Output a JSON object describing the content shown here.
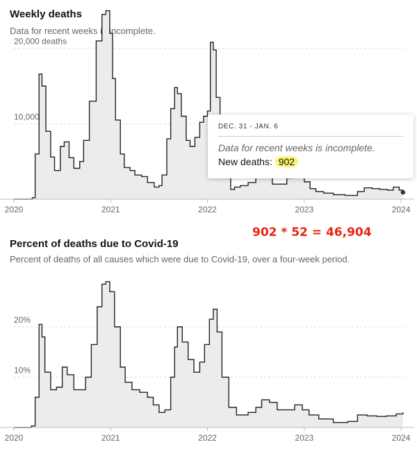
{
  "chart_data": [
    {
      "type": "area",
      "title": "Weekly deaths",
      "subtitle": "Data for recent weeks is incomplete.",
      "x_tick_labels": [
        "2020",
        "2021",
        "2022",
        "2023",
        "2024"
      ],
      "y_tick_labels": [
        "20,000 deaths",
        "10,000"
      ],
      "y_ticks": [
        20000,
        10000
      ],
      "xlim": [
        2020.0,
        2024.05
      ],
      "ylim": [
        0,
        22000
      ],
      "grid": "horizontal dashed",
      "x": [
        2020.0,
        2020.1,
        2020.19,
        2020.22,
        2020.26,
        2020.29,
        2020.33,
        2020.38,
        2020.42,
        2020.48,
        2020.52,
        2020.57,
        2020.62,
        2020.68,
        2020.72,
        2020.78,
        2020.85,
        2020.91,
        2020.95,
        2020.99,
        2021.02,
        2021.05,
        2021.1,
        2021.14,
        2021.2,
        2021.25,
        2021.32,
        2021.38,
        2021.45,
        2021.5,
        2021.53,
        2021.58,
        2021.62,
        2021.66,
        2021.69,
        2021.73,
        2021.78,
        2021.82,
        2021.87,
        2021.92,
        2021.96,
        2022.0,
        2022.03,
        2022.06,
        2022.09,
        2022.13,
        2022.18,
        2022.24,
        2022.28,
        2022.34,
        2022.42,
        2022.5,
        2022.55,
        2022.6,
        2022.67,
        2022.75,
        2022.82,
        2022.88,
        2022.94,
        2023.0,
        2023.06,
        2023.12,
        2023.2,
        2023.3,
        2023.42,
        2023.55,
        2023.62,
        2023.7,
        2023.78,
        2023.86,
        2023.92,
        2023.98,
        2024.02
      ],
      "values": [
        0,
        0,
        200,
        6000,
        16600,
        15000,
        9000,
        5600,
        3800,
        7000,
        7600,
        5500,
        4100,
        5000,
        7800,
        13000,
        21000,
        24500,
        25000,
        22000,
        16000,
        10500,
        6000,
        4200,
        3800,
        3200,
        3000,
        2200,
        1600,
        1800,
        3200,
        8000,
        12000,
        14800,
        14000,
        11000,
        7800,
        7000,
        8200,
        10200,
        11000,
        11700,
        20800,
        19800,
        13500,
        7000,
        3000,
        1300,
        1600,
        1800,
        2200,
        3200,
        3400,
        3000,
        2000,
        2000,
        2800,
        3800,
        3000,
        2300,
        1400,
        1000,
        800,
        600,
        500,
        1000,
        1500,
        1400,
        1300,
        1200,
        1600,
        1200,
        902
      ]
    },
    {
      "type": "area",
      "title": "Percent of deaths due to Covid-19",
      "subtitle": "Percent of deaths of all causes which were due to Covid-19, over a four-week period.",
      "x_tick_labels": [
        "2020",
        "2021",
        "2022",
        "2023",
        "2024"
      ],
      "y_tick_labels": [
        "20%",
        "10%"
      ],
      "y_ticks": [
        20,
        10
      ],
      "xlim": [
        2020.0,
        2024.05
      ],
      "ylim": [
        0,
        32
      ],
      "grid": "horizontal dashed",
      "x": [
        2020.0,
        2020.1,
        2020.18,
        2020.22,
        2020.26,
        2020.29,
        2020.32,
        2020.38,
        2020.44,
        2020.5,
        2020.55,
        2020.62,
        2020.68,
        2020.74,
        2020.8,
        2020.86,
        2020.91,
        2020.95,
        2020.99,
        2021.04,
        2021.1,
        2021.15,
        2021.22,
        2021.3,
        2021.38,
        2021.44,
        2021.5,
        2021.56,
        2021.62,
        2021.66,
        2021.69,
        2021.74,
        2021.8,
        2021.86,
        2021.92,
        2021.97,
        2022.02,
        2022.06,
        2022.1,
        2022.15,
        2022.22,
        2022.3,
        2022.42,
        2022.5,
        2022.56,
        2022.64,
        2022.72,
        2022.8,
        2022.9,
        2022.98,
        2023.05,
        2023.15,
        2023.3,
        2023.45,
        2023.55,
        2023.65,
        2023.75,
        2023.85,
        2023.95,
        2024.02
      ],
      "values": [
        0,
        0,
        0.3,
        6,
        20.5,
        18,
        11,
        7.5,
        8,
        12,
        10.5,
        7.5,
        7.5,
        10,
        16.5,
        24,
        28.5,
        29,
        27,
        20,
        12,
        9,
        7.5,
        7,
        6,
        4.5,
        3,
        3.5,
        10,
        16,
        20,
        17,
        13.5,
        11,
        13,
        16.5,
        21.5,
        23.5,
        19,
        10,
        4,
        2.5,
        3,
        4,
        5.5,
        5,
        3.5,
        3.5,
        4.5,
        3.5,
        2.5,
        1.7,
        1,
        1.2,
        2.5,
        2.3,
        2.2,
        2.3,
        2.7,
        3
      ]
    }
  ],
  "tooltip": {
    "date": "DEC. 31 - JAN. 6",
    "note": "Data for recent weeks is incomplete.",
    "label": "New deaths: ",
    "value": "902"
  },
  "annotation": "902 * 52 = 46,904",
  "colors": {
    "line": "#222222",
    "fill": "#ececec",
    "grid": "#d9d9d9",
    "axis": "#bbbbbb",
    "annotation": "#e8230f",
    "highlight": "#fbf57a"
  }
}
